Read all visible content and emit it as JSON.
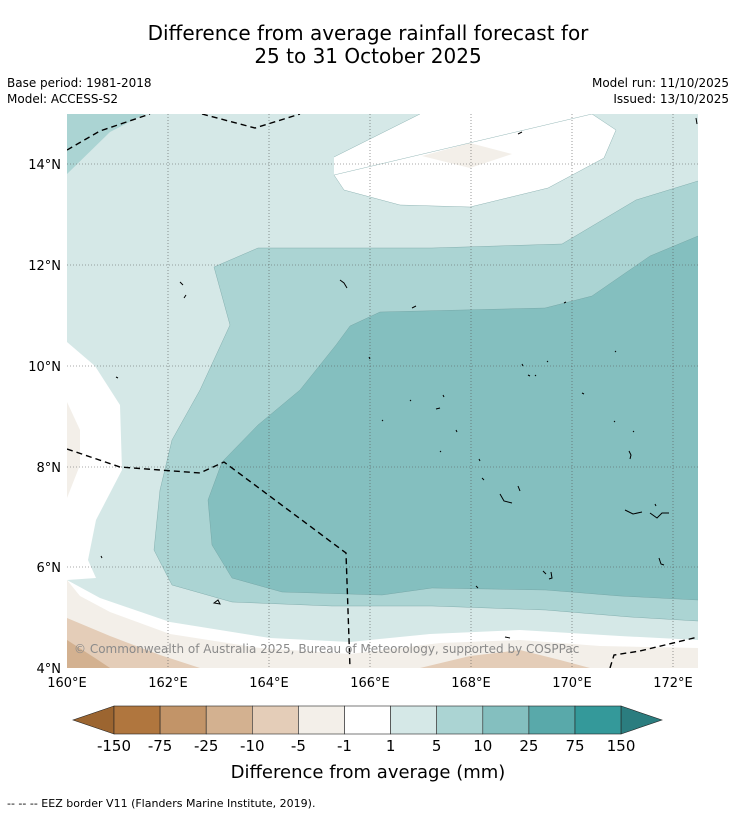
{
  "title_line1": "Difference from average rainfall forecast for",
  "title_line2": "25 to 31 October 2025",
  "base_period": "Base period: 1981-2018",
  "model": "Model: ACCESS-S2",
  "model_run": "Model run: 11/10/2025",
  "issued": "Issued: 13/10/2025",
  "map": {
    "lon_range": [
      160,
      172.5
    ],
    "lat_range": [
      4,
      15
    ],
    "lon_ticks": [
      "160°E",
      "162°E",
      "164°E",
      "166°E",
      "168°E",
      "170°E",
      "172°E"
    ],
    "lat_ticks": [
      "4°N",
      "6°N",
      "8°N",
      "10°N",
      "12°N",
      "14°N"
    ],
    "copyright": "© Commonwealth of Australia 2025, Bureau of Meteorology, supported by COSPPac"
  },
  "legend": {
    "title": "Difference from average (mm)",
    "tick_labels": [
      "-150",
      "-75",
      "-25",
      "-10",
      "-5",
      "-1",
      "1",
      "5",
      "10",
      "25",
      "75",
      "150"
    ],
    "colors": {
      "below_-150": "#9c6530",
      "-150_-75": "#b0763e",
      "-75_-25": "#c29468",
      "-25_-10": "#d3b190",
      "-10_-5": "#e4cdb8",
      "-5_-1": "#f3efe9",
      "-1_1": "#ffffff",
      "1_5": "#d5e8e7",
      "5_10": "#abd4d3",
      "10_25": "#84bfbf",
      "25_75": "#59a9aa",
      "75_150": "#34999a",
      "above_150": "#2b7d7f"
    }
  },
  "footer": "--  --  -- EEZ border V11 (Flanders Marine Institute, 2019)."
}
